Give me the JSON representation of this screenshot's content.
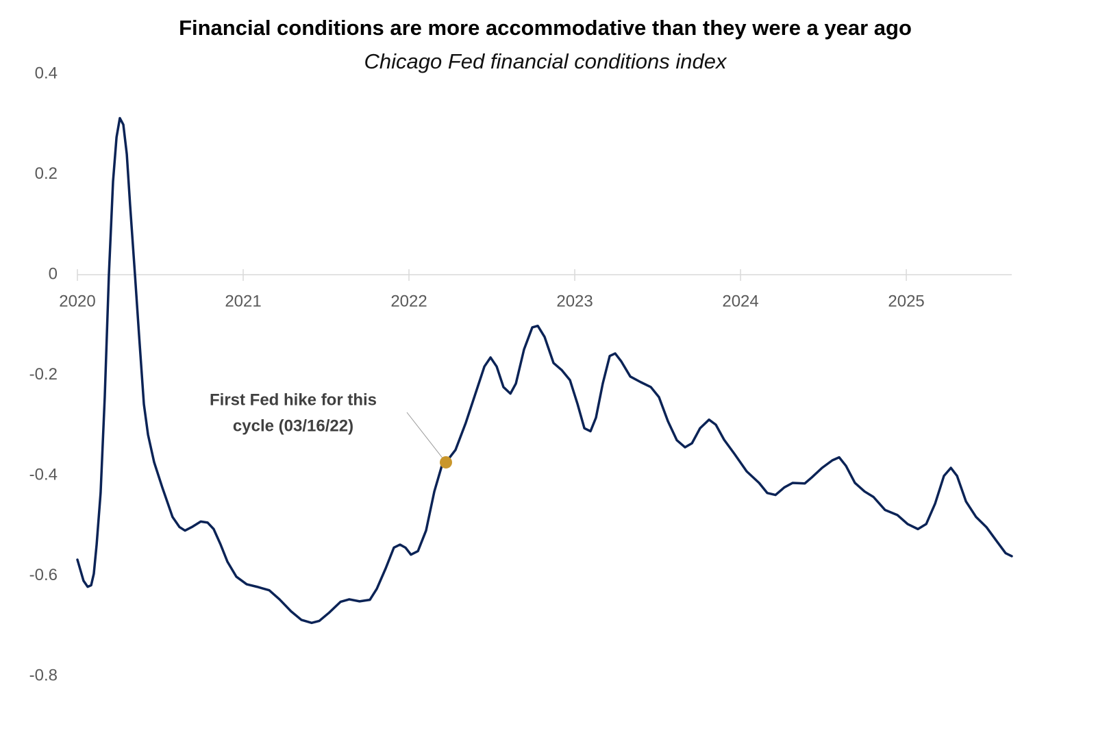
{
  "chart_data": {
    "type": "line",
    "title": "Financial conditions are more accommodative than they were a year ago",
    "subtitle": "Chicago Fed financial conditions index",
    "x": [
      2020.0,
      2020.037,
      2020.062,
      2020.083,
      2020.099,
      2020.116,
      2020.14,
      2020.165,
      2020.19,
      2020.215,
      2020.236,
      2020.256,
      2020.277,
      2020.298,
      2020.318,
      2020.347,
      2020.372,
      2020.401,
      2020.426,
      2020.463,
      2020.512,
      2020.574,
      2020.616,
      2020.649,
      2020.69,
      2020.744,
      2020.785,
      2020.822,
      2020.864,
      2020.905,
      2020.959,
      2021.021,
      2021.083,
      2021.157,
      2021.219,
      2021.289,
      2021.351,
      2021.413,
      2021.459,
      2021.517,
      2021.587,
      2021.64,
      2021.702,
      2021.764,
      2021.806,
      2021.86,
      2021.909,
      2021.946,
      2021.979,
      2022.012,
      2022.054,
      2022.103,
      2022.153,
      2022.198,
      2022.223,
      2022.281,
      2022.343,
      2022.397,
      2022.455,
      2022.492,
      2022.529,
      2022.57,
      2022.612,
      2022.645,
      2022.694,
      2022.744,
      2022.777,
      2022.818,
      2022.872,
      2022.921,
      2022.971,
      2023.017,
      2023.058,
      2023.095,
      2023.128,
      2023.169,
      2023.211,
      2023.244,
      2023.281,
      2023.335,
      2023.397,
      2023.459,
      2023.508,
      2023.562,
      2023.616,
      2023.665,
      2023.707,
      2023.756,
      2023.81,
      2023.851,
      2023.901,
      2023.963,
      2024.037,
      2024.112,
      2024.161,
      2024.211,
      2024.264,
      2024.314,
      2024.388,
      2024.43,
      2024.492,
      2024.554,
      2024.595,
      2024.636,
      2024.69,
      2024.748,
      2024.802,
      2024.872,
      2024.946,
      2025.008,
      2025.07,
      2025.12,
      2025.174,
      2025.227,
      2025.269,
      2025.306,
      2025.36,
      2025.421,
      2025.483,
      2025.545,
      2025.599,
      2025.636
    ],
    "values": [
      -0.568,
      -0.61,
      -0.622,
      -0.619,
      -0.596,
      -0.538,
      -0.435,
      -0.244,
      0,
      0.186,
      0.274,
      0.312,
      0.299,
      0.24,
      0.138,
      0.001,
      -0.121,
      -0.258,
      -0.319,
      -0.374,
      -0.424,
      -0.483,
      -0.503,
      -0.51,
      -0.503,
      -0.492,
      -0.494,
      -0.507,
      -0.538,
      -0.572,
      -0.602,
      -0.617,
      -0.622,
      -0.629,
      -0.647,
      -0.671,
      -0.688,
      -0.694,
      -0.69,
      -0.674,
      -0.652,
      -0.647,
      -0.651,
      -0.648,
      -0.626,
      -0.585,
      -0.544,
      -0.538,
      -0.544,
      -0.558,
      -0.551,
      -0.51,
      -0.432,
      -0.381,
      -0.374,
      -0.349,
      -0.295,
      -0.241,
      -0.183,
      -0.165,
      -0.183,
      -0.224,
      -0.237,
      -0.217,
      -0.149,
      -0.105,
      -0.102,
      -0.124,
      -0.176,
      -0.19,
      -0.21,
      -0.258,
      -0.306,
      -0.312,
      -0.285,
      -0.217,
      -0.162,
      -0.157,
      -0.173,
      -0.203,
      -0.214,
      -0.224,
      -0.244,
      -0.292,
      -0.33,
      -0.344,
      -0.336,
      -0.306,
      -0.289,
      -0.299,
      -0.329,
      -0.357,
      -0.392,
      -0.415,
      -0.435,
      -0.439,
      -0.424,
      -0.415,
      -0.416,
      -0.404,
      -0.385,
      -0.37,
      -0.364,
      -0.381,
      -0.415,
      -0.432,
      -0.443,
      -0.469,
      -0.479,
      -0.497,
      -0.507,
      -0.497,
      -0.456,
      -0.401,
      -0.385,
      -0.401,
      -0.452,
      -0.483,
      -0.503,
      -0.531,
      -0.555,
      -0.561
    ],
    "color": "#0b2356",
    "xlim": [
      2020,
      2025.636
    ],
    "xticks": [
      2020,
      2021,
      2022,
      2023,
      2024,
      2025
    ],
    "ylim": [
      -0.8,
      0.4
    ],
    "yticks": [
      -0.8,
      -0.6,
      -0.4,
      -0.2,
      0,
      0.2,
      0.4
    ],
    "grid": false,
    "annotation": {
      "text": [
        "First Fed hike for this",
        "cycle (03/16/22)"
      ],
      "x": 2022.223,
      "y": -0.374,
      "color": "#c9962b"
    }
  }
}
